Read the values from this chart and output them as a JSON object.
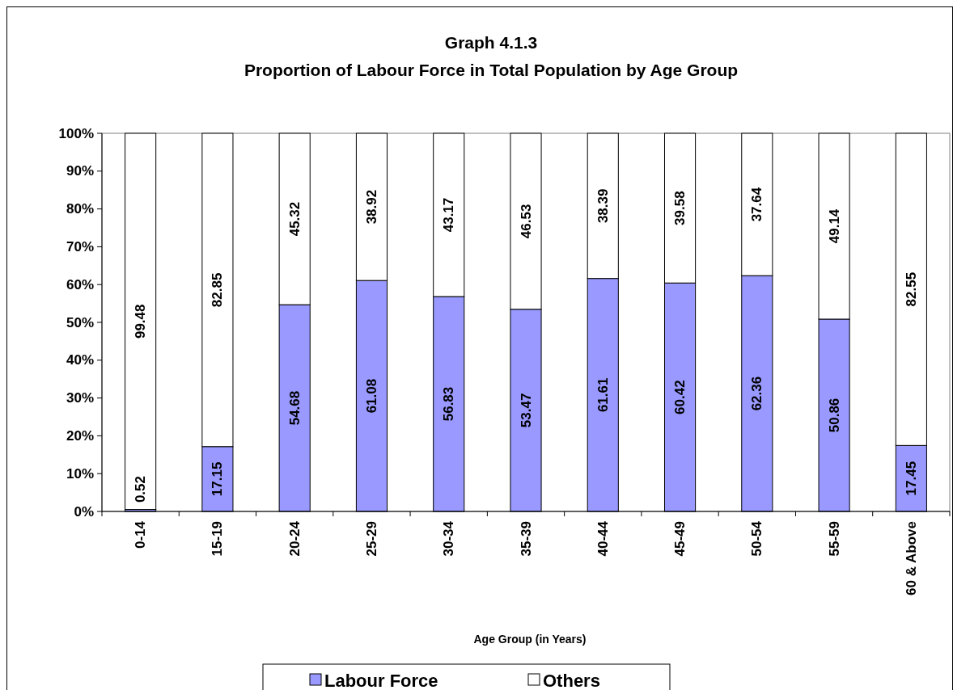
{
  "chart_data": {
    "type": "bar",
    "stacked": true,
    "title": "Graph 4.1.3\nProportion of Labour Force in Total Population by Age Group",
    "xlabel": "Age Group (in Years)",
    "categories": [
      "0-14",
      "15-19",
      "20-24",
      "25-29",
      "30-34",
      "35-39",
      "40-44",
      "45-49",
      "50-54",
      "55-59",
      "60 & Above"
    ],
    "series": [
      {
        "name": "Labour Force",
        "color": "#9999ff",
        "values": [
          0.52,
          17.15,
          54.68,
          61.08,
          56.83,
          53.47,
          61.61,
          60.42,
          62.36,
          50.86,
          17.45
        ]
      },
      {
        "name": "Others",
        "color": "#ffffff",
        "values": [
          99.48,
          82.85,
          45.32,
          38.92,
          43.17,
          46.53,
          38.39,
          39.58,
          37.64,
          49.14,
          82.55
        ]
      }
    ],
    "ylim": [
      0,
      100
    ],
    "yticks": [
      {
        "value": 0,
        "label": "0%"
      },
      {
        "value": 10,
        "label": "10%"
      },
      {
        "value": 20,
        "label": "20%"
      },
      {
        "value": 30,
        "label": "30%"
      },
      {
        "value": 40,
        "label": "40%"
      },
      {
        "value": 50,
        "label": "50%"
      },
      {
        "value": 60,
        "label": "60%"
      },
      {
        "value": 70,
        "label": "70%"
      },
      {
        "value": 80,
        "label": "80%"
      },
      {
        "value": 90,
        "label": "90%"
      },
      {
        "value": 100,
        "label": "100%"
      }
    ],
    "data_labels": true,
    "grid": false,
    "legend": "bottom"
  }
}
